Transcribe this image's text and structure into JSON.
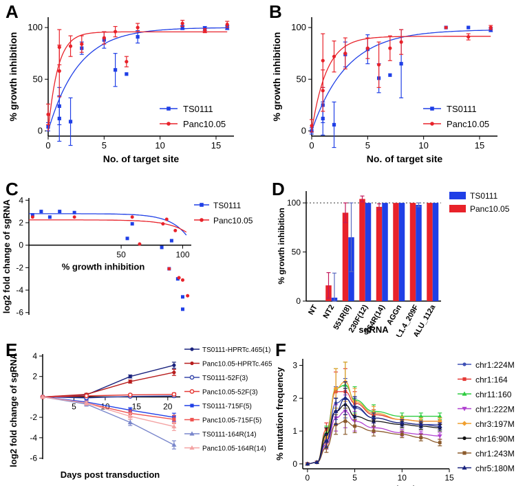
{
  "chart_data": [
    {
      "id": "A",
      "type": "scatter",
      "panel_label": "A",
      "xlabel": "No. of target site",
      "ylabel": "% growth inhibition",
      "xlim": [
        0,
        16.6
      ],
      "ylim": [
        -5,
        110
      ],
      "xticks": [
        0,
        5,
        10,
        15
      ],
      "yticks": [
        0,
        50,
        100
      ],
      "legend": "bottom-right",
      "series": [
        {
          "name": "TS0111",
          "color": "#1f3fe6",
          "marker": "square",
          "points": [
            [
              0,
              4,
              4
            ],
            [
              1,
              24,
              18
            ],
            [
              1,
              12,
              22
            ],
            [
              2,
              9,
              23
            ],
            [
              3,
              80,
              6
            ],
            [
              5,
              88,
              8
            ],
            [
              6,
              59,
              16
            ],
            [
              7,
              55,
              0
            ],
            [
              8,
              91,
              6
            ],
            [
              12,
              100,
              2
            ],
            [
              14,
              99,
              2
            ],
            [
              16,
              100,
              2
            ]
          ],
          "fit": {
            "model": "exp",
            "top": 100,
            "k": 0.37
          }
        },
        {
          "name": "Panc10.05",
          "color": "#e8222a",
          "marker": "circle",
          "points": [
            [
              0,
              16,
              10
            ],
            [
              1,
              81,
              17
            ],
            [
              1,
              58,
              25
            ],
            [
              2,
              82,
              10
            ],
            [
              3,
              84,
              8
            ],
            [
              5,
              90,
              6
            ],
            [
              6,
              96,
              5
            ],
            [
              7,
              67,
              5
            ],
            [
              8,
              100,
              4
            ],
            [
              12,
              104,
              3
            ],
            [
              14,
              97,
              2
            ],
            [
              16,
              103,
              3
            ]
          ],
          "fit": {
            "model": "exp",
            "top": 95.8,
            "k": 1.15
          }
        }
      ]
    },
    {
      "id": "B",
      "type": "scatter",
      "panel_label": "B",
      "xlabel": "No. of target site",
      "ylabel": "% growth inhibition",
      "xlim": [
        0,
        16.6
      ],
      "ylim": [
        -5,
        110
      ],
      "xticks": [
        0,
        5,
        10,
        15
      ],
      "yticks": [
        0,
        50,
        100
      ],
      "legend": "bottom-right",
      "series": [
        {
          "name": "TS0111",
          "color": "#1f3fe6",
          "marker": "square",
          "points": [
            [
              0,
              0,
              3
            ],
            [
              1,
              25,
              17
            ],
            [
              1,
              12,
              16
            ],
            [
              2,
              6,
              22
            ],
            [
              3,
              74,
              12
            ],
            [
              5,
              79,
              14
            ],
            [
              6,
              51,
              14
            ],
            [
              7,
              54,
              0
            ],
            [
              8,
              65,
              33
            ],
            [
              12,
              100,
              0
            ],
            [
              14,
              100,
              0
            ],
            [
              16,
              98,
              2
            ]
          ],
          "fit": {
            "model": "exp",
            "top": 98,
            "k": 0.32
          }
        },
        {
          "name": "Panc10.05",
          "color": "#e8222a",
          "marker": "circle",
          "points": [
            [
              0,
              5,
              6
            ],
            [
              1,
              68,
              26
            ],
            [
              1,
              39,
              20
            ],
            [
              2,
              72,
              15
            ],
            [
              3,
              75,
              15
            ],
            [
              5,
              80,
              10
            ],
            [
              6,
              64,
              22
            ],
            [
              7,
              80,
              12
            ],
            [
              8,
              86,
              12
            ],
            [
              12,
              100,
              0
            ],
            [
              14,
              91,
              3
            ],
            [
              16,
              100,
              2
            ]
          ],
          "fit": {
            "model": "exp",
            "top": 91.5,
            "k": 0.75
          }
        }
      ]
    },
    {
      "id": "C",
      "type": "scatter",
      "panel_label": "C",
      "xlabel": "% growth inhibition",
      "ylabel": "log2 fold change of sgRNA",
      "xlim": [
        -25,
        107
      ],
      "ylim": [
        -6.2,
        4.2
      ],
      "xticks": [
        50,
        100
      ],
      "yticks": [
        4,
        2,
        0,
        -2,
        -4,
        -6
      ],
      "legend": "top-right",
      "series": [
        {
          "name": "TS0111",
          "color": "#1f3fe6",
          "marker": "square",
          "points": [
            [
              -22,
              2.7
            ],
            [
              -15,
              3.0
            ],
            [
              -8,
              2.5
            ],
            [
              0,
              3.0
            ],
            [
              12,
              2.9
            ],
            [
              59,
              1.9
            ],
            [
              55,
              0.6
            ],
            [
              83,
              -0.2
            ],
            [
              89,
              -2.1
            ],
            [
              91,
              0.4
            ],
            [
              96,
              -3.0
            ],
            [
              100,
              -4.6
            ],
            [
              100,
              -5.7
            ]
          ],
          "fit": {
            "model": "decay",
            "a": 2.8,
            "b": 0.00115,
            "c": 0.072
          }
        },
        {
          "name": "Panc10.05",
          "color": "#e8222a",
          "marker": "circle",
          "points": [
            [
              -22,
              2.5
            ],
            [
              12,
              2.5
            ],
            [
              59,
              2.5
            ],
            [
              65,
              0.1
            ],
            [
              84,
              1.9
            ],
            [
              87,
              2.3
            ],
            [
              89,
              -2.1
            ],
            [
              94,
              1.3
            ],
            [
              97,
              -2.9
            ],
            [
              100,
              -3.1
            ],
            [
              104,
              -4.5
            ]
          ],
          "fit": {
            "model": "decay",
            "a": 2.25,
            "b": 0.00135,
            "c": 0.065
          }
        }
      ]
    },
    {
      "id": "D",
      "type": "bar",
      "panel_label": "D",
      "xlabel": "sgRNA",
      "ylabel": "% growth inhibition",
      "ylim": [
        0,
        112
      ],
      "yticks": [
        0,
        50,
        100
      ],
      "reference_line": 100,
      "legend": "top-right",
      "categories": [
        "NT",
        "NT2",
        "551R(8)",
        "230F(12)",
        "164R(14)",
        "AGGn",
        "L1.4_209F",
        "ALU_112a"
      ],
      "series": [
        {
          "name": "TS0111",
          "color": "#1f3fe6",
          "values": [
            0,
            3.5,
            65,
            100,
            100,
            100,
            98,
            100
          ],
          "errors": [
            0,
            25,
            35,
            0,
            0,
            0,
            2,
            0
          ]
        },
        {
          "name": "Panc10.05",
          "color": "#e8222a",
          "values": [
            0,
            16,
            90,
            104,
            96,
            100,
            100,
            100
          ],
          "errors": [
            0,
            13,
            10,
            3,
            3,
            0,
            0,
            0
          ]
        }
      ]
    },
    {
      "id": "E",
      "type": "line",
      "panel_label": "E",
      "xlabel": "Days post transduction",
      "ylabel": "log2 fold change of sgRNA",
      "xlim": [
        0,
        22
      ],
      "ylim": [
        -6.1,
        4.2
      ],
      "xticks": [
        5,
        10,
        15,
        20
      ],
      "yticks": [
        4,
        2,
        -2,
        -4,
        -6
      ],
      "x": [
        0,
        7,
        14,
        21
      ],
      "legend": "right",
      "series": [
        {
          "name": "TS0111-HPRTc.465(1)",
          "color": "#1a237e",
          "marker": "circle",
          "values": [
            0,
            0.2,
            2.0,
            3.1
          ],
          "errors": [
            0,
            0.1,
            0.15,
            0.3
          ]
        },
        {
          "name": "Panc10.05-HPRTc.465(1)",
          "color": "#b71c1c",
          "marker": "circle",
          "values": [
            0,
            0.25,
            1.5,
            2.4
          ],
          "errors": [
            0,
            0.1,
            0.15,
            0.3
          ]
        },
        {
          "name": "TS0111-52F(3)",
          "color": "#3949ab",
          "marker": "circle-open",
          "values": [
            0,
            -0.1,
            0.05,
            0.1
          ],
          "errors": [
            0,
            0.1,
            0.1,
            0.15
          ]
        },
        {
          "name": "Panc10.05-52F(3)",
          "color": "#e53935",
          "marker": "circle-open",
          "values": [
            0,
            0.1,
            0.2,
            0.25
          ],
          "errors": [
            0,
            0.1,
            0.1,
            0.15
          ]
        },
        {
          "name": "TS0111-715F(5)",
          "color": "#1f3fe6",
          "marker": "square",
          "values": [
            0,
            -0.5,
            -1.3,
            -2.0
          ],
          "errors": [
            0,
            0.2,
            0.25,
            0.4
          ]
        },
        {
          "name": "Panc10.05-715F(5)",
          "color": "#ef5350",
          "marker": "square",
          "values": [
            0,
            -0.6,
            -1.6,
            -2.2
          ],
          "errors": [
            0,
            0.2,
            0.3,
            0.4
          ]
        },
        {
          "name": "TS0111-164R(14)",
          "color": "#7986cb",
          "marker": "triangle",
          "values": [
            0,
            -0.7,
            -2.5,
            -4.7
          ],
          "errors": [
            0,
            0.2,
            0.3,
            0.4
          ]
        },
        {
          "name": "Panc10.05-164R(14)",
          "color": "#f4a3a3",
          "marker": "triangle",
          "values": [
            0,
            -0.6,
            -1.9,
            -2.9
          ],
          "errors": [
            0,
            0.2,
            0.3,
            0.4
          ]
        }
      ]
    },
    {
      "id": "F",
      "type": "line",
      "panel_label": "F",
      "xlabel": "Days post transduction",
      "ylabel": "% mutation frequency",
      "xlim": [
        -0.5,
        15
      ],
      "ylim": [
        -0.15,
        3.2
      ],
      "xticks": [
        0,
        5,
        10,
        15
      ],
      "yticks": [
        0,
        1,
        2,
        3
      ],
      "x": [
        0,
        1,
        2,
        3,
        4,
        5,
        7,
        10,
        12,
        14
      ],
      "legend": "right",
      "series": [
        {
          "name": "chr1:224M",
          "color": "#3f51b5",
          "marker": "circle",
          "values": [
            0,
            0.05,
            0.7,
            1.85,
            2.0,
            1.7,
            1.4,
            1.25,
            1.2,
            1.2
          ],
          "errors": [
            0,
            0.05,
            0.15,
            0.5,
            0.6,
            0.3,
            0.15,
            0.1,
            0.1,
            0.1
          ]
        },
        {
          "name": "chr1:164",
          "color": "#e53935",
          "marker": "square",
          "values": [
            0,
            0.05,
            1.05,
            2.2,
            2.2,
            1.85,
            1.5,
            1.35,
            1.3,
            1.3
          ],
          "errors": [
            0,
            0.05,
            0.2,
            0.6,
            0.7,
            0.35,
            0.15,
            0.1,
            0.1,
            0.1
          ]
        },
        {
          "name": "chr11:160",
          "color": "#2ecc40",
          "marker": "triangle",
          "values": [
            0,
            0.05,
            0.95,
            2.3,
            2.4,
            1.95,
            1.6,
            1.45,
            1.45,
            1.45
          ],
          "errors": [
            0,
            0.05,
            0.2,
            0.6,
            0.7,
            0.4,
            0.2,
            0.1,
            0.1,
            0.1
          ]
        },
        {
          "name": "chr1:222M",
          "color": "#b040d0",
          "marker": "triangle-down",
          "values": [
            0,
            0.05,
            0.6,
            1.4,
            1.6,
            1.3,
            1.1,
            0.95,
            0.9,
            0.85
          ],
          "errors": [
            0,
            0.05,
            0.15,
            0.4,
            0.5,
            0.3,
            0.15,
            0.1,
            0.1,
            0.1
          ]
        },
        {
          "name": "chr3:197M",
          "color": "#f0a030",
          "marker": "diamond",
          "values": [
            0,
            0.05,
            0.8,
            2.3,
            2.5,
            1.9,
            1.55,
            1.35,
            1.3,
            1.3
          ],
          "errors": [
            0,
            0.05,
            0.2,
            0.6,
            0.6,
            0.4,
            0.2,
            0.1,
            0.1,
            0.1
          ]
        },
        {
          "name": "chr16:90M",
          "color": "#111111",
          "marker": "circle",
          "values": [
            0,
            0.05,
            0.9,
            1.6,
            1.8,
            1.45,
            1.3,
            1.2,
            1.15,
            1.1
          ],
          "errors": [
            0,
            0.05,
            0.2,
            0.4,
            0.5,
            0.3,
            0.15,
            0.1,
            0.1,
            0.1
          ]
        },
        {
          "name": "chr1:243M",
          "color": "#8b5a2b",
          "marker": "square",
          "values": [
            0,
            0.05,
            0.5,
            1.2,
            1.3,
            1.15,
            1.0,
            0.9,
            0.8,
            0.65
          ],
          "errors": [
            0,
            0.05,
            0.15,
            0.3,
            0.4,
            0.2,
            0.15,
            0.1,
            0.1,
            0.1
          ]
        },
        {
          "name": "chr5:180M",
          "color": "#1a237e",
          "marker": "triangle",
          "values": [
            0,
            0.05,
            0.7,
            1.6,
            2.0,
            1.75,
            1.4,
            1.25,
            1.2,
            1.15
          ],
          "errors": [
            0,
            0.05,
            0.2,
            0.4,
            0.5,
            0.3,
            0.15,
            0.1,
            0.1,
            0.1
          ]
        }
      ]
    }
  ]
}
